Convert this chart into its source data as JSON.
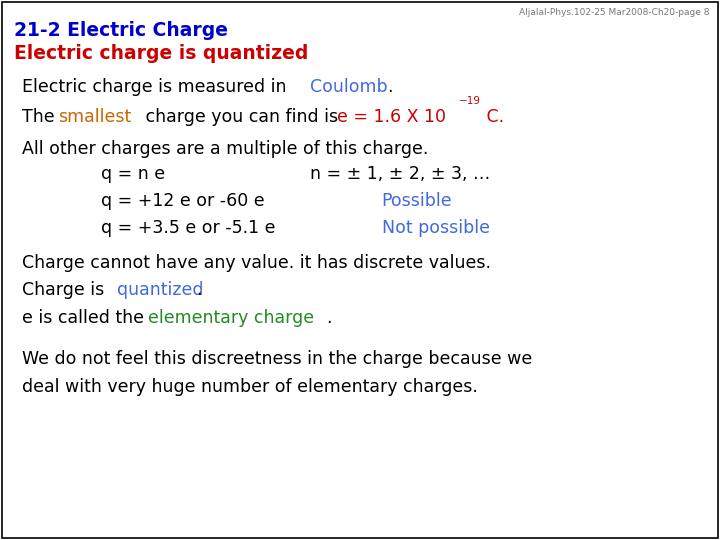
{
  "bg_color": "#ffffff",
  "border_color": "#000000",
  "watermark": "Aljalal-Phys.102-25 Mar2008-Ch20-page 8",
  "title1": "21-2 Electric Charge",
  "title1_color": "#0000cc",
  "title2": "Electric charge is quantized",
  "title2_color": "#cc0000",
  "title_fontsize": 13.5,
  "body_fontsize": 12.5,
  "watermark_fontsize": 6.5,
  "black": "#000000",
  "blue": "#4169e1",
  "red": "#cc0000",
  "orange": "#cc6600",
  "green": "#228b22"
}
